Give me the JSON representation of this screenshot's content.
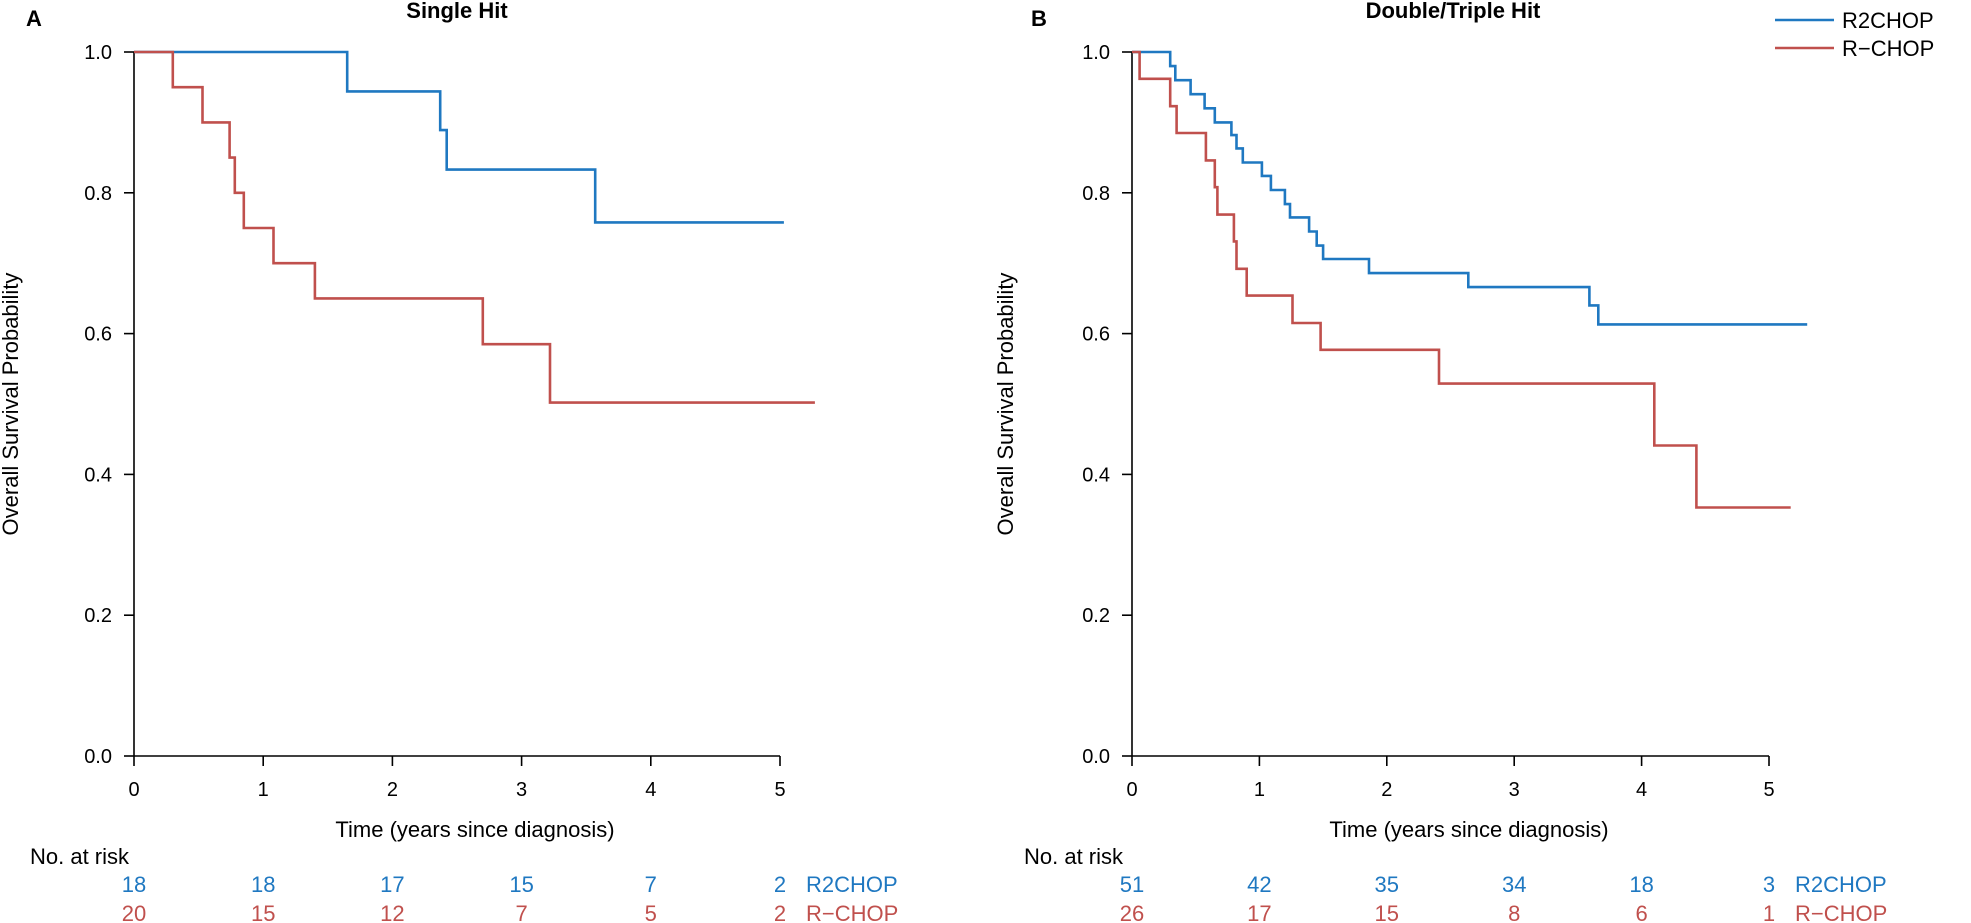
{
  "colors": {
    "R2CHOP": "#1f78c1",
    "R-CHOP": "#c0504d"
  },
  "legend": [
    {
      "name": "R2CHOP",
      "color": "#1f78c1"
    },
    {
      "name": "R−CHOP",
      "color": "#c0504d"
    }
  ],
  "chart_data": [
    {
      "type": "line",
      "subtype": "kaplan-meier-step",
      "panel_letter": "A",
      "title": "Single Hit",
      "xlabel": "Time (years since diagnosis)",
      "ylabel": "Overall Survival Probability",
      "xlim": [
        0,
        5
      ],
      "ylim": [
        0,
        1
      ],
      "xticks": [
        "0",
        "1",
        "2",
        "3",
        "4",
        "5"
      ],
      "yticks": [
        "0.0",
        "0.2",
        "0.4",
        "0.6",
        "0.8",
        "1.0"
      ],
      "series": [
        {
          "name": "R2CHOP",
          "color": "#1f78c1",
          "end": 5.03,
          "steps": [
            [
              0,
              1.0
            ],
            [
              1.65,
              0.944
            ],
            [
              2.37,
              0.889
            ],
            [
              2.42,
              0.833
            ],
            [
              3.57,
              0.758
            ]
          ]
        },
        {
          "name": "R−CHOP",
          "color": "#c0504d",
          "end": 5.27,
          "steps": [
            [
              0,
              1.0
            ],
            [
              0.3,
              0.95
            ],
            [
              0.53,
              0.9
            ],
            [
              0.74,
              0.85
            ],
            [
              0.78,
              0.8
            ],
            [
              0.85,
              0.75
            ],
            [
              1.08,
              0.7
            ],
            [
              1.4,
              0.65
            ],
            [
              2.7,
              0.585
            ],
            [
              3.22,
              0.502
            ]
          ]
        }
      ],
      "at_risk": {
        "label": "No. at risk",
        "times": [
          0,
          1,
          2,
          3,
          4,
          5
        ],
        "rows": [
          {
            "name": "R2CHOP",
            "color": "#1f78c1",
            "values": [
              "18",
              "18",
              "17",
              "15",
              "7",
              "2"
            ]
          },
          {
            "name": "R−CHOP",
            "color": "#c0504d",
            "values": [
              "20",
              "15",
              "12",
              "7",
              "5",
              "2"
            ]
          }
        ]
      }
    },
    {
      "type": "line",
      "subtype": "kaplan-meier-step",
      "panel_letter": "B",
      "title": "Double/Triple Hit",
      "xlabel": "Time (years since diagnosis)",
      "ylabel": "Overall Survival Probability",
      "xlim": [
        0,
        5
      ],
      "ylim": [
        0,
        1
      ],
      "xticks": [
        "0",
        "1",
        "2",
        "3",
        "4",
        "5"
      ],
      "yticks": [
        "0.0",
        "0.2",
        "0.4",
        "0.6",
        "0.8",
        "1.0"
      ],
      "series": [
        {
          "name": "R2CHOP",
          "color": "#1f78c1",
          "end": 5.3,
          "steps": [
            [
              0,
              1.0
            ],
            [
              0.3,
              0.98
            ],
            [
              0.34,
              0.96
            ],
            [
              0.46,
              0.94
            ],
            [
              0.57,
              0.92
            ],
            [
              0.65,
              0.9
            ],
            [
              0.78,
              0.882
            ],
            [
              0.82,
              0.863
            ],
            [
              0.87,
              0.843
            ],
            [
              1.02,
              0.824
            ],
            [
              1.09,
              0.804
            ],
            [
              1.2,
              0.784
            ],
            [
              1.24,
              0.765
            ],
            [
              1.39,
              0.745
            ],
            [
              1.45,
              0.725
            ],
            [
              1.5,
              0.706
            ],
            [
              1.86,
              0.686
            ],
            [
              2.64,
              0.666
            ],
            [
              3.59,
              0.64
            ],
            [
              3.66,
              0.613
            ]
          ]
        },
        {
          "name": "R−CHOP",
          "color": "#c0504d",
          "end": 5.17,
          "steps": [
            [
              0,
              1.0
            ],
            [
              0.06,
              0.962
            ],
            [
              0.3,
              0.923
            ],
            [
              0.35,
              0.885
            ],
            [
              0.58,
              0.846
            ],
            [
              0.65,
              0.808
            ],
            [
              0.67,
              0.769
            ],
            [
              0.8,
              0.731
            ],
            [
              0.82,
              0.692
            ],
            [
              0.9,
              0.654
            ],
            [
              1.26,
              0.615
            ],
            [
              1.48,
              0.577
            ],
            [
              2.41,
              0.529
            ],
            [
              4.1,
              0.441
            ],
            [
              4.43,
              0.353
            ]
          ]
        }
      ],
      "at_risk": {
        "label": "No. at risk",
        "times": [
          0,
          1,
          2,
          3,
          4,
          5
        ],
        "rows": [
          {
            "name": "R2CHOP",
            "color": "#1f78c1",
            "values": [
              "51",
              "42",
              "35",
              "34",
              "18",
              "3"
            ]
          },
          {
            "name": "R−CHOP",
            "color": "#c0504d",
            "values": [
              "26",
              "17",
              "15",
              "8",
              "6",
              "1"
            ]
          }
        ]
      }
    }
  ]
}
